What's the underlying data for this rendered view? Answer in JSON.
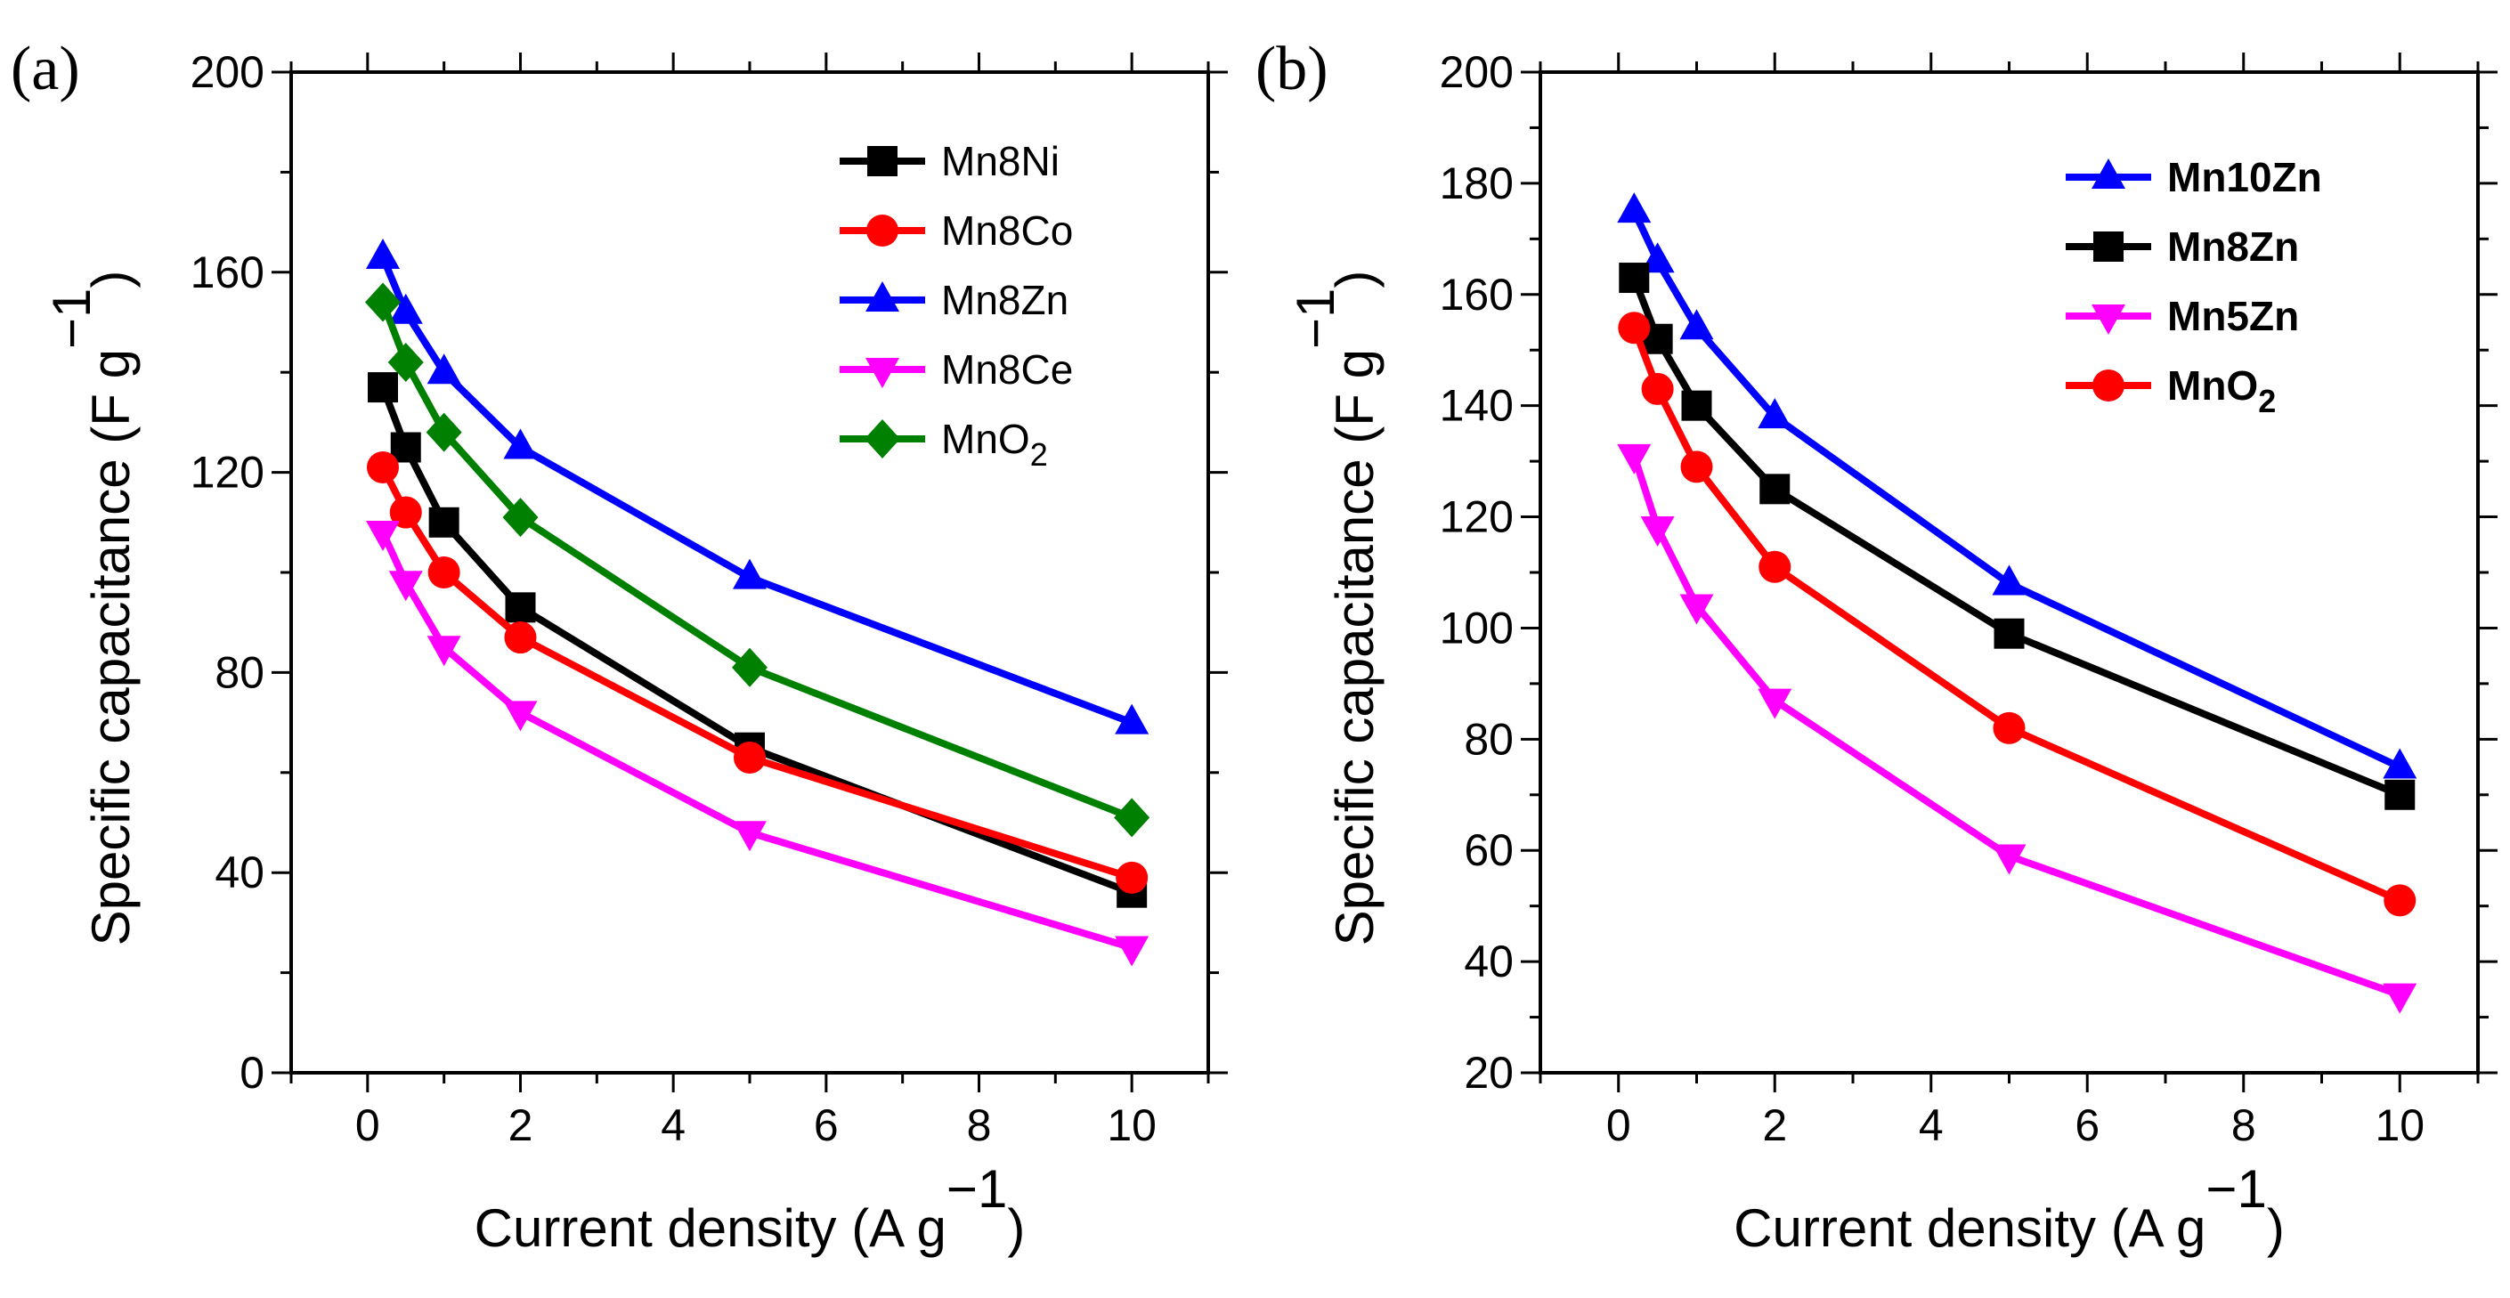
{
  "chart_data": [
    {
      "type": "line",
      "panel_label": "(a)",
      "xlabel": "Current density (A g",
      "xlabel_sup": "−1",
      "xlabel_close": ")",
      "ylabel": "Specific capacitance (F g",
      "ylabel_sup": "−1",
      "ylabel_close": ")",
      "xlim": [
        -1,
        11
      ],
      "ylim": [
        0,
        200
      ],
      "xticks": [
        0,
        2,
        4,
        6,
        8,
        10
      ],
      "yticks": [
        0,
        40,
        80,
        120,
        160,
        200
      ],
      "x": [
        0.2,
        0.5,
        1,
        2,
        5,
        10
      ],
      "legend_position": "top-right",
      "legend_bold": false,
      "series": [
        {
          "name": "Mn8Ni",
          "color": "#000000",
          "marker": "square",
          "values": [
            137,
            125,
            110,
            93,
            65,
            36
          ]
        },
        {
          "name": "Mn8Co",
          "color": "#ff0000",
          "marker": "circle",
          "values": [
            121,
            112,
            100,
            87,
            63,
            39
          ]
        },
        {
          "name": "Mn8Zn",
          "color": "#0000ff",
          "marker": "triangle-up",
          "values": [
            163,
            152,
            140,
            125,
            99,
            70
          ]
        },
        {
          "name": "Mn8Ce",
          "color": "#ff00ff",
          "marker": "triangle-down",
          "values": [
            108,
            98,
            85,
            72,
            48,
            25
          ]
        },
        {
          "name": "MnO",
          "name_sub": "2",
          "color": "#008000",
          "marker": "diamond",
          "values": [
            154,
            142,
            128,
            111,
            81,
            51
          ]
        }
      ]
    },
    {
      "type": "line",
      "panel_label": "(b)",
      "xlabel": "Current density (A g",
      "xlabel_sup": "−1",
      "xlabel_close": ")",
      "ylabel": "Specific capacitance (F g",
      "ylabel_sup": "−1",
      "ylabel_close": ")",
      "xlim": [
        -1,
        11
      ],
      "ylim": [
        20,
        200
      ],
      "xticks": [
        0,
        2,
        4,
        6,
        8,
        10
      ],
      "yticks": [
        20,
        40,
        60,
        80,
        100,
        120,
        140,
        160,
        180,
        200
      ],
      "x": [
        0.2,
        0.5,
        1,
        2,
        5,
        10
      ],
      "legend_position": "top-right",
      "legend_bold": true,
      "series": [
        {
          "name": "Mn10Zn",
          "color": "#0000ff",
          "marker": "triangle-up",
          "values": [
            175,
            166,
            154,
            138,
            108,
            75
          ]
        },
        {
          "name": "Mn8Zn",
          "color": "#000000",
          "marker": "square",
          "values": [
            163,
            152,
            140,
            125,
            99,
            70
          ]
        },
        {
          "name": "Mn5Zn",
          "color": "#ff00ff",
          "marker": "triangle-down",
          "values": [
            131,
            118,
            104,
            87,
            59,
            34
          ]
        },
        {
          "name": "MnO",
          "name_sub": "2",
          "color": "#ff0000",
          "marker": "circle",
          "values": [
            154,
            143,
            129,
            111,
            82,
            51
          ]
        }
      ]
    }
  ]
}
